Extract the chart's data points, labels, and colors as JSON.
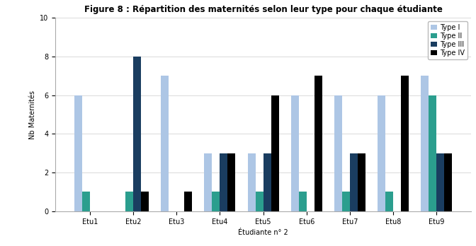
{
  "title": "Figure 8 : Répartition des maternités selon leur type pour chaque étudiante",
  "xlabel": "Étudiante n° 2",
  "ylabel": "Nb Maternités",
  "categories": [
    "Etu1",
    "Etu2",
    "Etu3",
    "Etu4",
    "Etu5",
    "Etu6",
    "Etu7",
    "Etu8",
    "Etu9"
  ],
  "legend_labels": [
    "Type I",
    "Type II",
    "Type III",
    "Type IV"
  ],
  "series": [
    {
      "label": "Type I",
      "color": "#adc6e5",
      "values": [
        6,
        0,
        7,
        3,
        3,
        6,
        6,
        6,
        7
      ]
    },
    {
      "label": "Type II",
      "color": "#2b9e8e",
      "values": [
        1,
        1,
        0,
        1,
        1,
        1,
        1,
        1,
        6
      ]
    },
    {
      "label": "Type III",
      "color": "#1a3d60",
      "values": [
        0,
        8,
        0,
        3,
        3,
        0,
        3,
        0,
        3
      ]
    },
    {
      "label": "Type IV",
      "color": "#000000",
      "values": [
        0,
        1,
        1,
        3,
        6,
        7,
        3,
        7,
        3
      ]
    }
  ],
  "ylim": [
    0,
    10
  ],
  "yticks": [
    0,
    2,
    4,
    6,
    8,
    10
  ],
  "ytick_labels": [
    "0",
    "2",
    "4",
    "6",
    "8",
    "10"
  ],
  "bar_width": 0.18,
  "grid": true,
  "background_color": "#ffffff",
  "title_fontsize": 8.5,
  "axis_fontsize": 7,
  "tick_fontsize": 7,
  "legend_fontsize": 7
}
